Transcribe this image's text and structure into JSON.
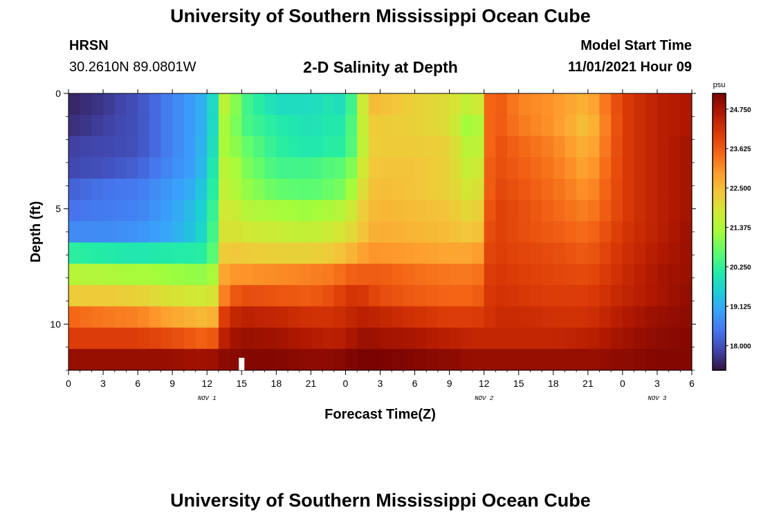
{
  "header": {
    "title": "University of Southern Mississippi Ocean Cube",
    "station": "HRSN",
    "coords": "30.2610N  89.0801W",
    "subtitle": "2-D Salinity at Depth",
    "model_label": "Model Start Time",
    "model_time": "11/01/2021 Hour 09"
  },
  "footer": {
    "title": "University of Southern Mississippi Ocean Cube"
  },
  "chart_data": {
    "type": "heatmap",
    "title": "2-D Salinity at Depth",
    "xlabel": "Forecast Time(Z)",
    "ylabel": "Depth (ft)",
    "x_hours_range": [
      0,
      54
    ],
    "x_start": "Nov 1 00Z",
    "x_tick_labels": [
      "0",
      "3",
      "6",
      "9",
      "12",
      "15",
      "18",
      "21",
      "0",
      "3",
      "6",
      "9",
      "12",
      "15",
      "18",
      "21",
      "0",
      "3",
      "6"
    ],
    "date_labels": [
      {
        "label": "NOV 1",
        "hour": 12
      },
      {
        "label": "NOV 2",
        "hour": 36
      },
      {
        "label": "NOV 3",
        "hour": 51
      }
    ],
    "ylim": [
      0,
      12
    ],
    "y_ticks": [
      0,
      5,
      10
    ],
    "y_tick_labels": [
      "0",
      "5",
      "10"
    ],
    "depth_rows_ft": [
      0,
      1,
      2,
      3,
      4,
      5,
      6,
      7,
      8,
      9,
      10,
      11,
      12
    ],
    "colorbar": {
      "unit": "psu",
      "range": [
        17.3,
        25.2
      ],
      "ticks": [
        "24.750",
        "23.625",
        "22.500",
        "21.375",
        "20.250",
        "19.125",
        "18.000"
      ],
      "colors": [
        "#30123b",
        "#4145ab",
        "#4675ed",
        "#39a2fc",
        "#1bcfd4",
        "#24eca6",
        "#61fc6c",
        "#a4fc3b",
        "#d1e834",
        "#f3c63a",
        "#fe9b2d",
        "#f36315",
        "#d93806",
        "#b11901",
        "#7a0402"
      ]
    },
    "annotation": {
      "type": "now-marker",
      "hour": 15
    },
    "time_anchors_hours": [
      0,
      3,
      6,
      9,
      11,
      12,
      13,
      13.5,
      14,
      15,
      18,
      21,
      23,
      24,
      25,
      26,
      27,
      30,
      33,
      35,
      36,
      36.5,
      37,
      39,
      42,
      45,
      48,
      51,
      54
    ],
    "salinity_psu": [
      [
        17.5,
        17.7,
        18.0,
        18.6,
        19.0,
        19.3,
        20.2,
        21.5,
        21.5,
        20.5,
        19.8,
        19.8,
        20.0,
        19.7,
        21.0,
        22.5,
        22.5,
        22.2,
        22.0,
        21.5,
        22.0,
        23.5,
        23.7,
        23.2,
        23.0,
        22.6,
        24.0,
        24.5,
        24.7
      ],
      [
        17.6,
        17.8,
        18.0,
        18.6,
        19.0,
        19.3,
        20.2,
        21.3,
        21.3,
        20.5,
        20.1,
        19.9,
        20.1,
        20.0,
        21.0,
        22.3,
        22.3,
        22.2,
        22.0,
        21.0,
        21.8,
        23.5,
        23.7,
        23.3,
        23.0,
        22.4,
        24.0,
        24.5,
        24.7
      ],
      [
        17.8,
        17.9,
        18.0,
        18.6,
        19.0,
        19.4,
        20.3,
        21.3,
        21.3,
        20.8,
        20.2,
        20.0,
        20.2,
        20.1,
        21.0,
        22.2,
        22.3,
        22.3,
        22.2,
        21.3,
        21.8,
        23.5,
        23.8,
        23.5,
        23.2,
        22.6,
        24.0,
        24.5,
        24.8
      ],
      [
        17.9,
        18.0,
        18.2,
        18.7,
        19.0,
        19.5,
        20.5,
        21.5,
        21.6,
        21.0,
        20.4,
        20.4,
        20.6,
        20.6,
        21.3,
        22.3,
        22.4,
        22.4,
        22.2,
        21.5,
        22.0,
        23.6,
        23.8,
        23.6,
        23.3,
        22.8,
        24.0,
        24.5,
        24.8
      ],
      [
        18.2,
        18.4,
        18.5,
        18.9,
        19.2,
        19.7,
        20.6,
        21.6,
        21.6,
        21.2,
        20.7,
        20.6,
        20.8,
        20.9,
        21.6,
        22.4,
        22.5,
        22.4,
        22.2,
        21.7,
        22.2,
        23.6,
        23.9,
        23.7,
        23.4,
        23.0,
        24.0,
        24.5,
        24.8
      ],
      [
        18.4,
        18.5,
        18.6,
        19.0,
        19.4,
        19.8,
        20.8,
        21.8,
        21.9,
        21.5,
        21.3,
        21.2,
        21.4,
        21.5,
        22.0,
        22.5,
        22.6,
        22.5,
        22.4,
        22.0,
        22.4,
        23.7,
        24.0,
        23.8,
        23.5,
        23.2,
        24.0,
        24.5,
        24.8
      ],
      [
        18.7,
        18.7,
        18.8,
        19.1,
        19.5,
        19.9,
        20.9,
        21.9,
        22.0,
        21.8,
        21.7,
        21.6,
        21.8,
        21.9,
        22.2,
        22.6,
        22.7,
        22.6,
        22.5,
        22.3,
        22.6,
        23.8,
        24.0,
        23.8,
        23.6,
        23.4,
        24.1,
        24.5,
        24.9
      ],
      [
        20.2,
        20.1,
        20.0,
        20.1,
        20.1,
        20.2,
        21.0,
        22.3,
        22.4,
        22.3,
        22.2,
        22.2,
        22.3,
        22.5,
        22.7,
        23.0,
        23.0,
        22.9,
        22.8,
        22.8,
        23.0,
        23.9,
        24.0,
        23.9,
        23.8,
        23.6,
        24.2,
        24.6,
        24.9
      ],
      [
        21.5,
        21.4,
        21.3,
        21.2,
        21.1,
        21.1,
        21.5,
        22.8,
        23.0,
        23.0,
        23.1,
        23.2,
        23.3,
        23.5,
        23.6,
        23.6,
        23.6,
        23.4,
        23.3,
        23.3,
        23.4,
        24.0,
        24.1,
        24.0,
        23.9,
        23.8,
        24.3,
        24.7,
        24.9
      ],
      [
        22.3,
        22.3,
        22.2,
        21.9,
        21.8,
        21.8,
        22.0,
        23.2,
        23.5,
        23.8,
        23.7,
        23.6,
        23.8,
        24.1,
        24.2,
        24.0,
        23.8,
        23.6,
        23.5,
        23.5,
        23.7,
        24.1,
        24.2,
        24.1,
        24.0,
        24.0,
        24.4,
        24.7,
        25.0
      ],
      [
        23.5,
        23.3,
        23.2,
        22.8,
        22.6,
        22.5,
        22.8,
        24.0,
        24.3,
        24.5,
        24.4,
        24.2,
        24.2,
        24.3,
        24.5,
        24.5,
        24.4,
        24.2,
        24.0,
        24.0,
        24.1,
        24.2,
        24.3,
        24.3,
        24.2,
        24.2,
        24.6,
        24.9,
        25.0
      ],
      [
        24.0,
        24.0,
        24.0,
        23.8,
        23.6,
        23.5,
        23.8,
        24.5,
        24.7,
        24.9,
        24.8,
        24.6,
        24.5,
        24.6,
        24.8,
        24.9,
        24.8,
        24.7,
        24.5,
        24.4,
        24.4,
        24.4,
        24.4,
        24.4,
        24.4,
        24.5,
        24.8,
        25.0,
        25.1
      ],
      [
        24.9,
        24.9,
        24.9,
        24.9,
        24.8,
        24.8,
        24.9,
        25.0,
        25.0,
        25.1,
        25.1,
        25.0,
        25.0,
        25.1,
        25.2,
        25.2,
        25.2,
        25.1,
        25.0,
        24.9,
        24.9,
        24.9,
        24.9,
        24.9,
        24.9,
        24.9,
        25.0,
        25.1,
        25.1
      ]
    ]
  }
}
